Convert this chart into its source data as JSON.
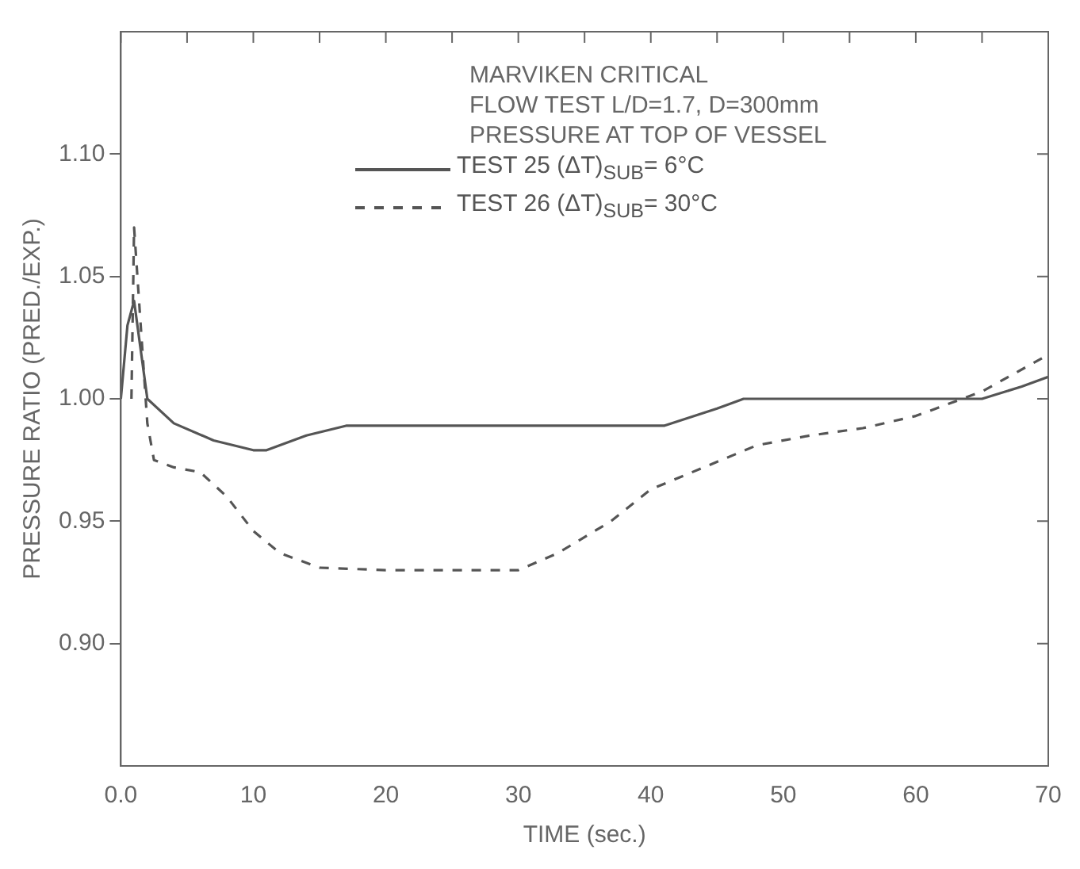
{
  "chart_data": {
    "type": "line",
    "legend_title": "MARVIKEN CRITICAL\nFLOW TEST L/D=1.7, D=300mm\nPRESSURE AT TOP OF VESSEL",
    "xlabel": "TIME (sec.)",
    "ylabel": "PRESSURE RATIO (PRED./EXP.)",
    "xlim": [
      0,
      70
    ],
    "ylim": [
      0.85,
      1.15
    ],
    "xticks": [
      {
        "value": 0,
        "label": "0.0"
      },
      {
        "value": 5,
        "label": null
      },
      10,
      {
        "value": 15,
        "label": null
      },
      20,
      {
        "value": 25,
        "label": null
      },
      30,
      {
        "value": 35,
        "label": null
      },
      40,
      {
        "value": 45,
        "label": null
      },
      50,
      {
        "value": 55,
        "label": null
      },
      60,
      {
        "value": 65,
        "label": null
      },
      70
    ],
    "yticks": [
      {
        "value": 0.9,
        "label": "0.90"
      },
      {
        "value": 0.95,
        "label": "0.95"
      },
      {
        "value": 1.0,
        "label": "1.00"
      },
      {
        "value": 1.05,
        "label": "1.05"
      },
      {
        "value": 1.1,
        "label": "1.10"
      }
    ],
    "grid": false,
    "legend": "top",
    "marker": "none",
    "series": [
      {
        "name": "TEST 25 (ΔT)$_{SUB}$= 6°C",
        "color": "#555555",
        "line_style": "solid",
        "x": [
          0,
          0.5,
          1,
          1.5,
          2,
          4,
          7,
          10,
          11,
          14,
          17,
          25,
          40,
          41,
          45,
          47,
          60,
          65,
          68,
          70
        ],
        "values": [
          1.0,
          1.03,
          1.04,
          1.02,
          1.0,
          0.99,
          0.983,
          0.979,
          0.979,
          0.985,
          0.989,
          0.989,
          0.989,
          0.989,
          0.996,
          1.0,
          1.0,
          1.0,
          1.005,
          1.009
        ]
      },
      {
        "name": "TEST 26 (ΔT)$_{SUB}$= 30°C",
        "color": "#555555",
        "line_style": "dashed",
        "x": [
          0.8,
          1,
          1.5,
          2,
          2.5,
          4,
          6,
          8,
          10,
          12,
          15,
          20,
          30,
          33,
          37,
          40,
          44,
          48,
          52,
          56,
          60,
          65,
          70
        ],
        "values": [
          1.0,
          1.07,
          1.03,
          0.99,
          0.975,
          0.972,
          0.97,
          0.96,
          0.946,
          0.937,
          0.931,
          0.93,
          0.93,
          0.937,
          0.95,
          0.963,
          0.972,
          0.981,
          0.985,
          0.988,
          0.993,
          1.003,
          1.018
        ]
      }
    ]
  }
}
